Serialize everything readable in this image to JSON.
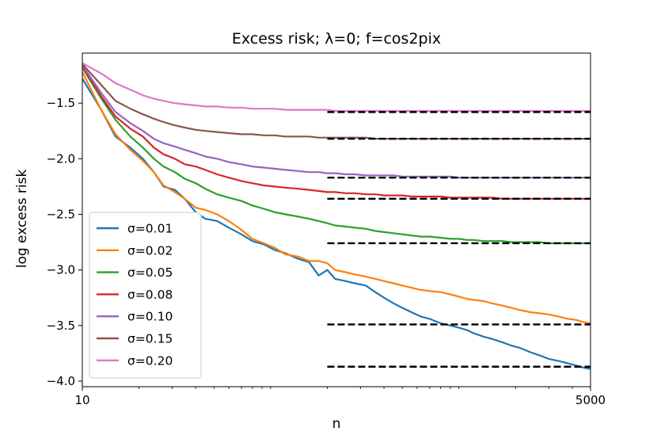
{
  "chart_data": {
    "type": "line",
    "title": "Excess risk; λ=0;  f=cos2pix",
    "xlabel": "n",
    "ylabel": "log excess risk",
    "xscale": "log",
    "xlim": [
      10,
      5000
    ],
    "ylim": [
      -4.05,
      -1.05
    ],
    "xtick_labels": [
      "10",
      "5000"
    ],
    "yticks": [
      -1.5,
      -2.0,
      -2.5,
      -3.0,
      -3.5,
      -4.0
    ],
    "ytick_labels": [
      "−1.5",
      "−2.0",
      "−2.5",
      "−3.0",
      "−3.5",
      "−4.0"
    ],
    "grid": false,
    "legend_position": "lower-left",
    "series": [
      {
        "name": "σ=0.01",
        "color": "#1f77b4",
        "x": [
          10,
          12.5,
          15,
          18,
          21,
          24,
          27,
          31,
          35,
          40,
          45,
          52,
          60,
          70,
          80,
          92,
          105,
          120,
          140,
          160,
          180,
          200,
          220,
          250,
          280,
          320,
          360,
          400,
          450,
          500,
          560,
          630,
          700,
          800,
          900,
          1000,
          1100,
          1200,
          1350,
          1500,
          1700,
          1900,
          2100,
          2400,
          2700,
          3000,
          3400,
          3800,
          4200,
          4600,
          5000
        ],
        "y": [
          -1.28,
          -1.55,
          -1.8,
          -1.9,
          -2.0,
          -2.12,
          -2.25,
          -2.28,
          -2.36,
          -2.48,
          -2.54,
          -2.56,
          -2.62,
          -2.68,
          -2.74,
          -2.77,
          -2.82,
          -2.85,
          -2.9,
          -2.93,
          -3.05,
          -3.0,
          -3.08,
          -3.1,
          -3.12,
          -3.14,
          -3.2,
          -3.25,
          -3.3,
          -3.34,
          -3.38,
          -3.42,
          -3.44,
          -3.48,
          -3.5,
          -3.52,
          -3.54,
          -3.57,
          -3.6,
          -3.62,
          -3.65,
          -3.68,
          -3.7,
          -3.74,
          -3.77,
          -3.8,
          -3.82,
          -3.84,
          -3.86,
          -3.88,
          -3.89
        ]
      },
      {
        "name": "σ=0.02",
        "color": "#ff7f0e",
        "x": [
          10,
          12.5,
          15,
          18,
          21,
          24,
          27,
          31,
          35,
          40,
          45,
          52,
          60,
          70,
          80,
          92,
          105,
          120,
          140,
          160,
          180,
          200,
          220,
          250,
          280,
          320,
          360,
          400,
          450,
          500,
          560,
          630,
          700,
          800,
          900,
          1000,
          1100,
          1200,
          1350,
          1500,
          1700,
          1900,
          2100,
          2400,
          2700,
          3000,
          3400,
          3800,
          4200,
          4600,
          5000
        ],
        "y": [
          -1.22,
          -1.55,
          -1.78,
          -1.92,
          -2.02,
          -2.12,
          -2.24,
          -2.3,
          -2.36,
          -2.44,
          -2.46,
          -2.5,
          -2.56,
          -2.64,
          -2.72,
          -2.76,
          -2.8,
          -2.86,
          -2.88,
          -2.92,
          -2.92,
          -2.94,
          -3.0,
          -3.02,
          -3.04,
          -3.06,
          -3.08,
          -3.1,
          -3.12,
          -3.14,
          -3.16,
          -3.18,
          -3.19,
          -3.2,
          -3.22,
          -3.24,
          -3.26,
          -3.27,
          -3.28,
          -3.3,
          -3.32,
          -3.34,
          -3.36,
          -3.38,
          -3.39,
          -3.4,
          -3.42,
          -3.44,
          -3.45,
          -3.47,
          -3.48
        ]
      },
      {
        "name": "σ=0.05",
        "color": "#2ca02c",
        "x": [
          10,
          12.5,
          15,
          18,
          21,
          24,
          27,
          31,
          35,
          40,
          45,
          52,
          60,
          70,
          80,
          92,
          105,
          120,
          140,
          160,
          180,
          200,
          220,
          250,
          280,
          320,
          360,
          400,
          450,
          500,
          560,
          630,
          700,
          800,
          900,
          1000,
          1100,
          1200,
          1350,
          1500,
          1700,
          1900,
          2100,
          2400,
          2700,
          3000,
          3400,
          3800,
          4200,
          4600,
          5000
        ],
        "y": [
          -1.18,
          -1.45,
          -1.65,
          -1.8,
          -1.9,
          -2.0,
          -2.07,
          -2.12,
          -2.18,
          -2.22,
          -2.27,
          -2.32,
          -2.35,
          -2.38,
          -2.42,
          -2.45,
          -2.48,
          -2.5,
          -2.52,
          -2.54,
          -2.56,
          -2.58,
          -2.6,
          -2.61,
          -2.62,
          -2.63,
          -2.65,
          -2.66,
          -2.67,
          -2.68,
          -2.69,
          -2.7,
          -2.7,
          -2.71,
          -2.72,
          -2.72,
          -2.73,
          -2.73,
          -2.74,
          -2.74,
          -2.74,
          -2.75,
          -2.75,
          -2.75,
          -2.75,
          -2.76,
          -2.76,
          -2.76,
          -2.76,
          -2.76,
          -2.76
        ]
      },
      {
        "name": "σ=0.08",
        "color": "#d62728",
        "x": [
          10,
          12.5,
          15,
          18,
          21,
          24,
          27,
          31,
          35,
          40,
          45,
          52,
          60,
          70,
          80,
          92,
          105,
          120,
          140,
          160,
          180,
          200,
          220,
          250,
          280,
          320,
          360,
          400,
          450,
          500,
          560,
          630,
          700,
          800,
          900,
          1000,
          1100,
          1200,
          1350,
          1500,
          1700,
          1900,
          2100,
          2400,
          2700,
          3000,
          3400,
          3800,
          4200,
          4600,
          5000
        ],
        "y": [
          -1.17,
          -1.43,
          -1.62,
          -1.73,
          -1.8,
          -1.9,
          -1.96,
          -2.0,
          -2.05,
          -2.07,
          -2.1,
          -2.14,
          -2.17,
          -2.2,
          -2.22,
          -2.24,
          -2.25,
          -2.26,
          -2.27,
          -2.28,
          -2.29,
          -2.3,
          -2.3,
          -2.31,
          -2.31,
          -2.32,
          -2.32,
          -2.33,
          -2.33,
          -2.33,
          -2.34,
          -2.34,
          -2.34,
          -2.34,
          -2.35,
          -2.35,
          -2.35,
          -2.35,
          -2.35,
          -2.35,
          -2.36,
          -2.36,
          -2.36,
          -2.36,
          -2.36,
          -2.36,
          -2.36,
          -2.36,
          -2.36,
          -2.36,
          -2.36
        ]
      },
      {
        "name": "σ=0.10",
        "color": "#9467bd",
        "x": [
          10,
          12.5,
          15,
          18,
          21,
          24,
          27,
          31,
          35,
          40,
          45,
          52,
          60,
          70,
          80,
          92,
          105,
          120,
          140,
          160,
          180,
          200,
          220,
          250,
          280,
          320,
          360,
          400,
          450,
          500,
          560,
          630,
          700,
          800,
          900,
          1000,
          1100,
          1200,
          1350,
          1500,
          1700,
          1900,
          2100,
          2400,
          2700,
          3000,
          3400,
          3800,
          4200,
          4600,
          5000
        ],
        "y": [
          -1.16,
          -1.4,
          -1.58,
          -1.68,
          -1.75,
          -1.82,
          -1.86,
          -1.89,
          -1.92,
          -1.95,
          -1.98,
          -2.0,
          -2.03,
          -2.05,
          -2.07,
          -2.08,
          -2.09,
          -2.1,
          -2.11,
          -2.12,
          -2.12,
          -2.13,
          -2.13,
          -2.14,
          -2.14,
          -2.15,
          -2.15,
          -2.15,
          -2.15,
          -2.16,
          -2.16,
          -2.16,
          -2.16,
          -2.16,
          -2.16,
          -2.17,
          -2.17,
          -2.17,
          -2.17,
          -2.17,
          -2.17,
          -2.17,
          -2.17,
          -2.17,
          -2.17,
          -2.17,
          -2.17,
          -2.17,
          -2.17,
          -2.17,
          -2.17
        ]
      },
      {
        "name": "σ=0.15",
        "color": "#8c564b",
        "x": [
          10,
          12.5,
          15,
          18,
          21,
          24,
          27,
          31,
          35,
          40,
          45,
          52,
          60,
          70,
          80,
          92,
          105,
          120,
          140,
          160,
          180,
          200,
          220,
          250,
          280,
          320,
          360,
          400,
          450,
          500,
          560,
          630,
          700,
          800,
          900,
          1000,
          1100,
          1200,
          1350,
          1500,
          1700,
          1900,
          2100,
          2400,
          2700,
          3000,
          3400,
          3800,
          4200,
          4600,
          5000
        ],
        "y": [
          -1.15,
          -1.33,
          -1.48,
          -1.55,
          -1.6,
          -1.64,
          -1.67,
          -1.7,
          -1.72,
          -1.74,
          -1.75,
          -1.76,
          -1.77,
          -1.78,
          -1.78,
          -1.79,
          -1.79,
          -1.8,
          -1.8,
          -1.8,
          -1.81,
          -1.81,
          -1.81,
          -1.81,
          -1.81,
          -1.81,
          -1.82,
          -1.82,
          -1.82,
          -1.82,
          -1.82,
          -1.82,
          -1.82,
          -1.82,
          -1.82,
          -1.82,
          -1.82,
          -1.82,
          -1.82,
          -1.82,
          -1.82,
          -1.82,
          -1.82,
          -1.82,
          -1.82,
          -1.82,
          -1.82,
          -1.82,
          -1.82,
          -1.82,
          -1.82
        ]
      },
      {
        "name": "σ=0.20",
        "color": "#e377c2",
        "x": [
          10,
          12.5,
          15,
          18,
          21,
          24,
          27,
          31,
          35,
          40,
          45,
          52,
          60,
          70,
          80,
          92,
          105,
          120,
          140,
          160,
          180,
          200,
          220,
          250,
          280,
          320,
          360,
          400,
          450,
          500,
          560,
          630,
          700,
          800,
          900,
          1000,
          1100,
          1200,
          1350,
          1500,
          1700,
          1900,
          2100,
          2400,
          2700,
          3000,
          3400,
          3800,
          4200,
          4600,
          5000
        ],
        "y": [
          -1.14,
          -1.23,
          -1.32,
          -1.38,
          -1.43,
          -1.46,
          -1.48,
          -1.5,
          -1.51,
          -1.52,
          -1.53,
          -1.53,
          -1.54,
          -1.54,
          -1.55,
          -1.55,
          -1.55,
          -1.56,
          -1.56,
          -1.56,
          -1.56,
          -1.56,
          -1.57,
          -1.57,
          -1.57,
          -1.57,
          -1.57,
          -1.57,
          -1.57,
          -1.57,
          -1.57,
          -1.57,
          -1.57,
          -1.57,
          -1.57,
          -1.57,
          -1.57,
          -1.57,
          -1.57,
          -1.57,
          -1.57,
          -1.57,
          -1.57,
          -1.57,
          -1.57,
          -1.57,
          -1.57,
          -1.57,
          -1.57,
          -1.57,
          -1.57
        ]
      }
    ],
    "reference_lines": {
      "style": "dashed",
      "color": "#000000",
      "x_range": [
        200,
        5000
      ],
      "y_values": [
        -1.58,
        -1.82,
        -2.17,
        -2.36,
        -2.76,
        -3.49,
        -3.87
      ]
    }
  }
}
